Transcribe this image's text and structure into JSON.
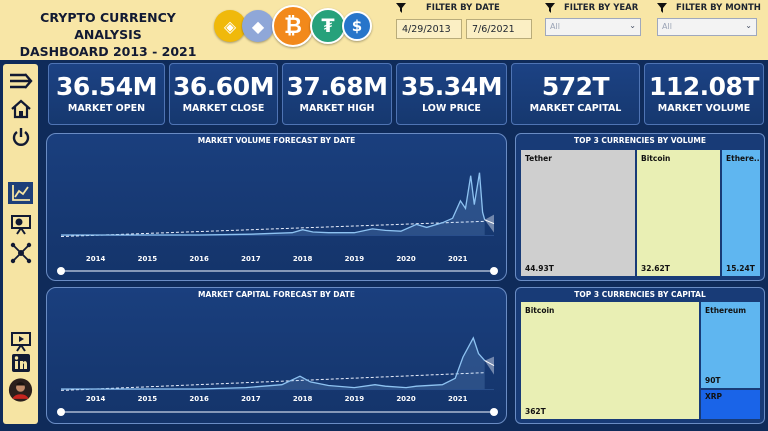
{
  "header": {
    "title_line1": "CRYPTO CURRENCY ANALYSIS",
    "title_line2": "DASHBOARD 2013 - 2021"
  },
  "logos": [
    {
      "icon": "binance-coin-icon",
      "color": "#f0b90b",
      "symbol": "◈"
    },
    {
      "icon": "ethereum-coin-icon",
      "color": "#8fa7d8",
      "symbol": "◆"
    },
    {
      "icon": "bitcoin-coin-icon",
      "color": "#f2891b",
      "symbol": "₿"
    },
    {
      "icon": "tether-coin-icon",
      "color": "#26a17b",
      "symbol": "₮"
    },
    {
      "icon": "usd-coin-icon",
      "color": "#2775ca",
      "symbol": "$"
    }
  ],
  "filters": {
    "date": {
      "label": "FILTER BY DATE",
      "start": "4/29/2013",
      "end": "7/6/2021"
    },
    "year": {
      "label": "FILTER BY YEAR",
      "value": "All"
    },
    "month": {
      "label": "FILTER BY MONTH",
      "value": "All"
    }
  },
  "kpis": [
    {
      "value": "36.54M",
      "label": "MARKET OPEN"
    },
    {
      "value": "36.60M",
      "label": "MARKET CLOSE"
    },
    {
      "value": "37.68M",
      "label": "MARKET HIGH"
    },
    {
      "value": "35.34M",
      "label": "LOW PRICE"
    },
    {
      "value": "572T",
      "label": "MARKET CAPITAL"
    },
    {
      "value": "112.08T",
      "label": "MARKET VOLUME"
    }
  ],
  "sidebar": [
    {
      "icon": "menu-arrow-icon",
      "active": false
    },
    {
      "icon": "home-icon",
      "active": false
    },
    {
      "icon": "power-icon",
      "active": false
    },
    {
      "icon": "line-chart-icon",
      "active": true
    },
    {
      "icon": "presentation-icon",
      "active": false
    },
    {
      "icon": "network-icon",
      "active": false
    },
    {
      "icon": "video-presentation-icon",
      "active": false
    },
    {
      "icon": "linkedin-icon",
      "active": false
    },
    {
      "icon": "profile-avatar",
      "active": false
    }
  ],
  "colors": {
    "background": "#0f2b5a",
    "header": "#f8e6a6",
    "line": "#8ec3f2",
    "tether": "#cfcfcf",
    "bitcoin": "#e9efb4",
    "ethereum": "#5fb6f0",
    "xrp": "#1a64e8"
  },
  "charts": {
    "volume_title": "MARKET VOLUME FORECAST BY DATE",
    "capital_title": "MARKET CAPITAL FORECAST BY DATE",
    "volume_treemap_title": "TOP 3 CURRENCIES BY VOLUME",
    "capital_treemap_title": "TOP 3 CURRENCIES BY CAPITAL"
  },
  "chart_data": [
    {
      "type": "line",
      "title": "MARKET VOLUME FORECAST BY DATE",
      "x_ticks": [
        "2014",
        "2015",
        "2016",
        "2017",
        "2018",
        "2019",
        "2020",
        "2021"
      ],
      "series": [
        {
          "values": [
            [
              2013.33,
              0.0
            ],
            [
              2014.0,
              0.0
            ],
            [
              2015.0,
              0.0
            ],
            [
              2016.0,
              0.0
            ],
            [
              2017.0,
              0.01
            ],
            [
              2017.8,
              0.03
            ],
            [
              2018.0,
              0.07
            ],
            [
              2018.2,
              0.04
            ],
            [
              2018.5,
              0.03
            ],
            [
              2019.0,
              0.03
            ],
            [
              2019.35,
              0.08
            ],
            [
              2019.6,
              0.06
            ],
            [
              2019.9,
              0.05
            ],
            [
              2020.2,
              0.14
            ],
            [
              2020.4,
              0.1
            ],
            [
              2020.7,
              0.16
            ],
            [
              2020.9,
              0.22
            ],
            [
              2021.05,
              0.45
            ],
            [
              2021.15,
              0.35
            ],
            [
              2021.25,
              0.78
            ],
            [
              2021.32,
              0.4
            ],
            [
              2021.42,
              0.82
            ],
            [
              2021.48,
              0.3
            ],
            [
              2021.52,
              0.2
            ]
          ]
        }
      ],
      "trend": [
        [
          2013.33,
          -0.02
        ],
        [
          2021.52,
          0.18
        ]
      ],
      "forecast": [
        [
          2021.52,
          0.2
        ],
        [
          2021.7,
          0.15
        ]
      ],
      "xlim": [
        2013.33,
        2021.7
      ],
      "ylim": [
        0,
        1.0
      ]
    },
    {
      "type": "line",
      "title": "MARKET CAPITAL FORECAST BY DATE",
      "x_ticks": [
        "2014",
        "2015",
        "2016",
        "2017",
        "2018",
        "2019",
        "2020",
        "2021"
      ],
      "series": [
        {
          "values": [
            [
              2013.33,
              0.0
            ],
            [
              2014.0,
              0.0
            ],
            [
              2015.0,
              0.0
            ],
            [
              2016.0,
              0.0
            ],
            [
              2016.9,
              0.02
            ],
            [
              2017.6,
              0.06
            ],
            [
              2017.95,
              0.18
            ],
            [
              2018.15,
              0.1
            ],
            [
              2018.5,
              0.05
            ],
            [
              2019.0,
              0.02
            ],
            [
              2019.4,
              0.06
            ],
            [
              2019.6,
              0.04
            ],
            [
              2020.0,
              0.02
            ],
            [
              2020.2,
              0.04
            ],
            [
              2020.7,
              0.06
            ],
            [
              2020.95,
              0.15
            ],
            [
              2021.1,
              0.45
            ],
            [
              2021.3,
              0.72
            ],
            [
              2021.4,
              0.5
            ],
            [
              2021.52,
              0.4
            ]
          ]
        }
      ],
      "trend": [
        [
          2013.33,
          -0.02
        ],
        [
          2021.52,
          0.23
        ]
      ],
      "forecast": [
        [
          2021.52,
          0.4
        ],
        [
          2021.7,
          0.33
        ]
      ],
      "xlim": [
        2013.33,
        2021.7
      ],
      "ylim": [
        0,
        1.0
      ]
    },
    {
      "type": "heatmap",
      "title": "TOP 3 CURRENCIES BY VOLUME",
      "categories": [
        "Tether",
        "Bitcoin",
        "Ethereum"
      ],
      "values": [
        44.93,
        32.62,
        15.24
      ],
      "value_labels": [
        "44.93T",
        "32.62T",
        "15.24T"
      ],
      "name_labels": [
        "Tether",
        "Bitcoin",
        "Ethere..."
      ]
    },
    {
      "type": "heatmap",
      "title": "TOP 3 CURRENCIES BY CAPITAL",
      "categories": [
        "Bitcoin",
        "Ethereum",
        "XRP"
      ],
      "values": [
        362,
        90,
        15
      ],
      "value_labels": [
        "362T",
        "90T",
        ""
      ],
      "name_labels": [
        "Bitcoin",
        "Ethereum",
        "XRP"
      ]
    }
  ]
}
